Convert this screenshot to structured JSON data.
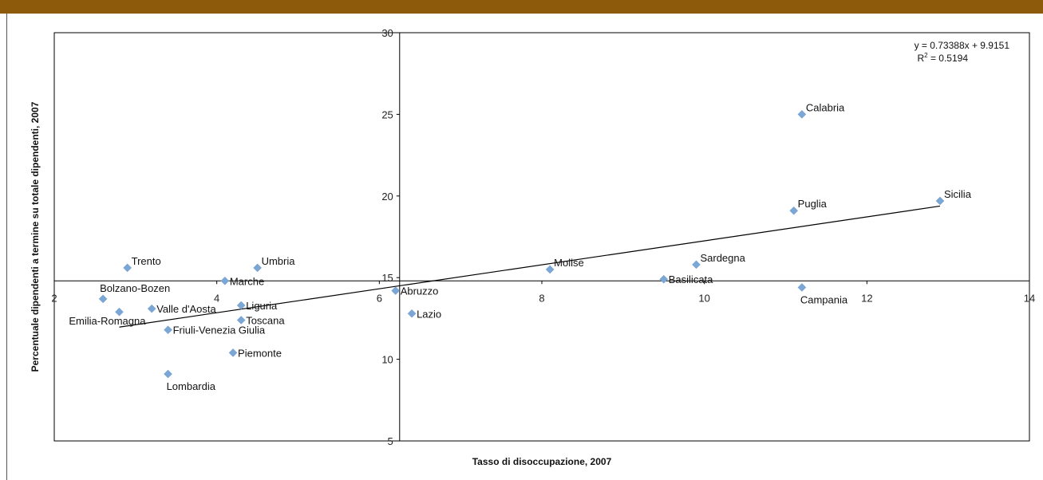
{
  "colors": {
    "band": "#8c5a0a",
    "marker": "#7ba7d7",
    "axis": "#000000"
  },
  "chart_data": {
    "type": "scatter",
    "xlabel": "Tasso di disoccupazione, 2007",
    "ylabel": "Percentuale dipendenti a termine su totale dipendenti, 2007",
    "xlim": [
      2,
      14
    ],
    "ylim": [
      5,
      30
    ],
    "x_ticks": [
      "2",
      "4",
      "6",
      "8",
      "10",
      "12",
      "14"
    ],
    "y_ticks": [
      "5",
      "10",
      "15",
      "20",
      "25",
      "30"
    ],
    "x_axis_crosses_y": 14.8,
    "y_axis_crosses_x": 6.25,
    "grid": false,
    "trendline": {
      "slope": 0.73388,
      "intercept": 9.9151,
      "x_range": [
        2.8,
        12.9
      ],
      "equation": "y = 0.73388x + 9.9151",
      "r2_prefix": "R",
      "r2_sup": "2",
      "r2_suffix": " = 0.5194"
    },
    "points": [
      {
        "label": "Trento",
        "x": 2.9,
        "y": 15.6,
        "lpos": "ur"
      },
      {
        "label": "Umbria",
        "x": 4.5,
        "y": 15.6,
        "lpos": "ur"
      },
      {
        "label": "Marche",
        "x": 4.1,
        "y": 14.8,
        "lpos": "r"
      },
      {
        "label": "Bolzano-Bozen",
        "x": 2.6,
        "y": 13.7,
        "lpos": "ua"
      },
      {
        "label": "Emilia-Romagna",
        "x": 2.8,
        "y": 12.9,
        "lpos": "bl"
      },
      {
        "label": "Valle d'Aosta",
        "x": 3.2,
        "y": 13.1,
        "lpos": "r"
      },
      {
        "label": "Liguria",
        "x": 4.3,
        "y": 13.3,
        "lpos": "r"
      },
      {
        "label": "Toscana",
        "x": 4.3,
        "y": 12.4,
        "lpos": "r"
      },
      {
        "label": "Friuli-Venezia Giulia",
        "x": 3.4,
        "y": 11.8,
        "lpos": "r"
      },
      {
        "label": "Piemonte",
        "x": 4.2,
        "y": 10.4,
        "lpos": "r"
      },
      {
        "label": "Lombardia",
        "x": 3.4,
        "y": 9.1,
        "lpos": "b"
      },
      {
        "label": "Abruzzo",
        "x": 6.2,
        "y": 14.2,
        "lpos": "r"
      },
      {
        "label": "Lazio",
        "x": 6.4,
        "y": 12.8,
        "lpos": "r"
      },
      {
        "label": "Molise",
        "x": 8.1,
        "y": 15.5,
        "lpos": "ur"
      },
      {
        "label": "Sardegna",
        "x": 9.9,
        "y": 15.8,
        "lpos": "ur"
      },
      {
        "label": "Basilicata",
        "x": 9.5,
        "y": 14.9,
        "lpos": "r"
      },
      {
        "label": "Campania",
        "x": 11.2,
        "y": 14.4,
        "lpos": "b"
      },
      {
        "label": "Puglia",
        "x": 11.1,
        "y": 19.1,
        "lpos": "ur"
      },
      {
        "label": "Calabria",
        "x": 11.2,
        "y": 25.0,
        "lpos": "ur"
      },
      {
        "label": "Sicilia",
        "x": 12.9,
        "y": 19.7,
        "lpos": "ur"
      }
    ]
  }
}
